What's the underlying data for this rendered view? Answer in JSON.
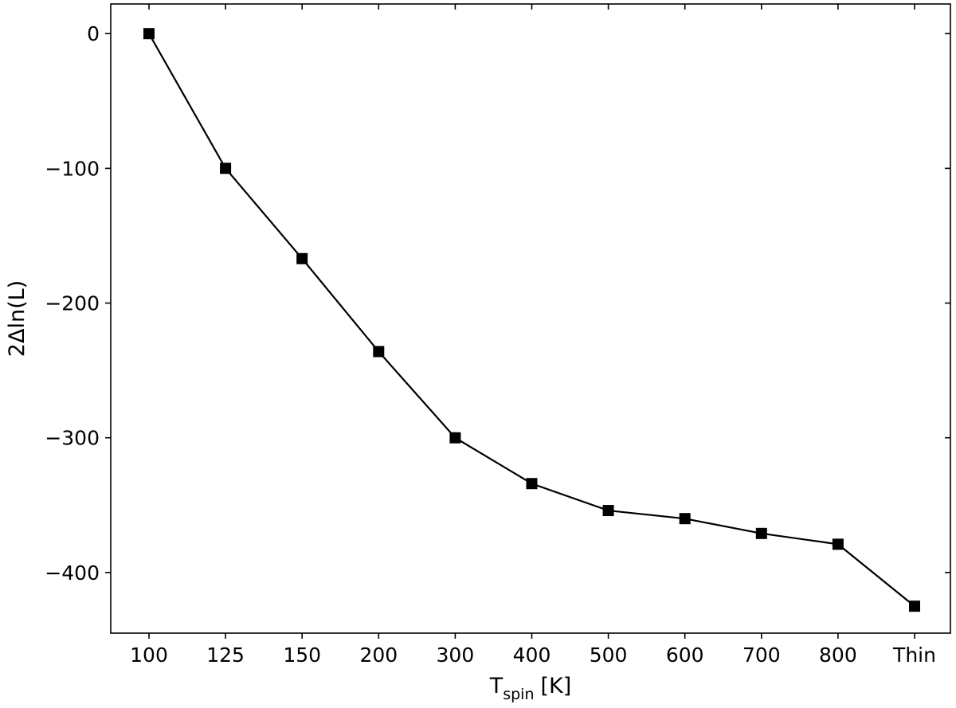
{
  "chart_data": {
    "type": "line",
    "categories": [
      "100",
      "125",
      "150",
      "200",
      "300",
      "400",
      "500",
      "600",
      "700",
      "800",
      "Thin"
    ],
    "values": [
      0,
      -100,
      -167,
      -236,
      -300,
      -334,
      -354,
      -360,
      -371,
      -379,
      -425
    ],
    "xlabel": {
      "main": "T",
      "subscript": "spin",
      "unit": "[K]"
    },
    "ylabel": "2Δln(L)",
    "ylim": [
      -445,
      22
    ],
    "yticks": [
      0,
      -100,
      -200,
      -300,
      -400
    ],
    "ytick_labels": [
      "0",
      "−100",
      "−200",
      "−300",
      "−400"
    ],
    "marker": "square",
    "line_color": "#000000",
    "grid": false,
    "legend": "none"
  }
}
